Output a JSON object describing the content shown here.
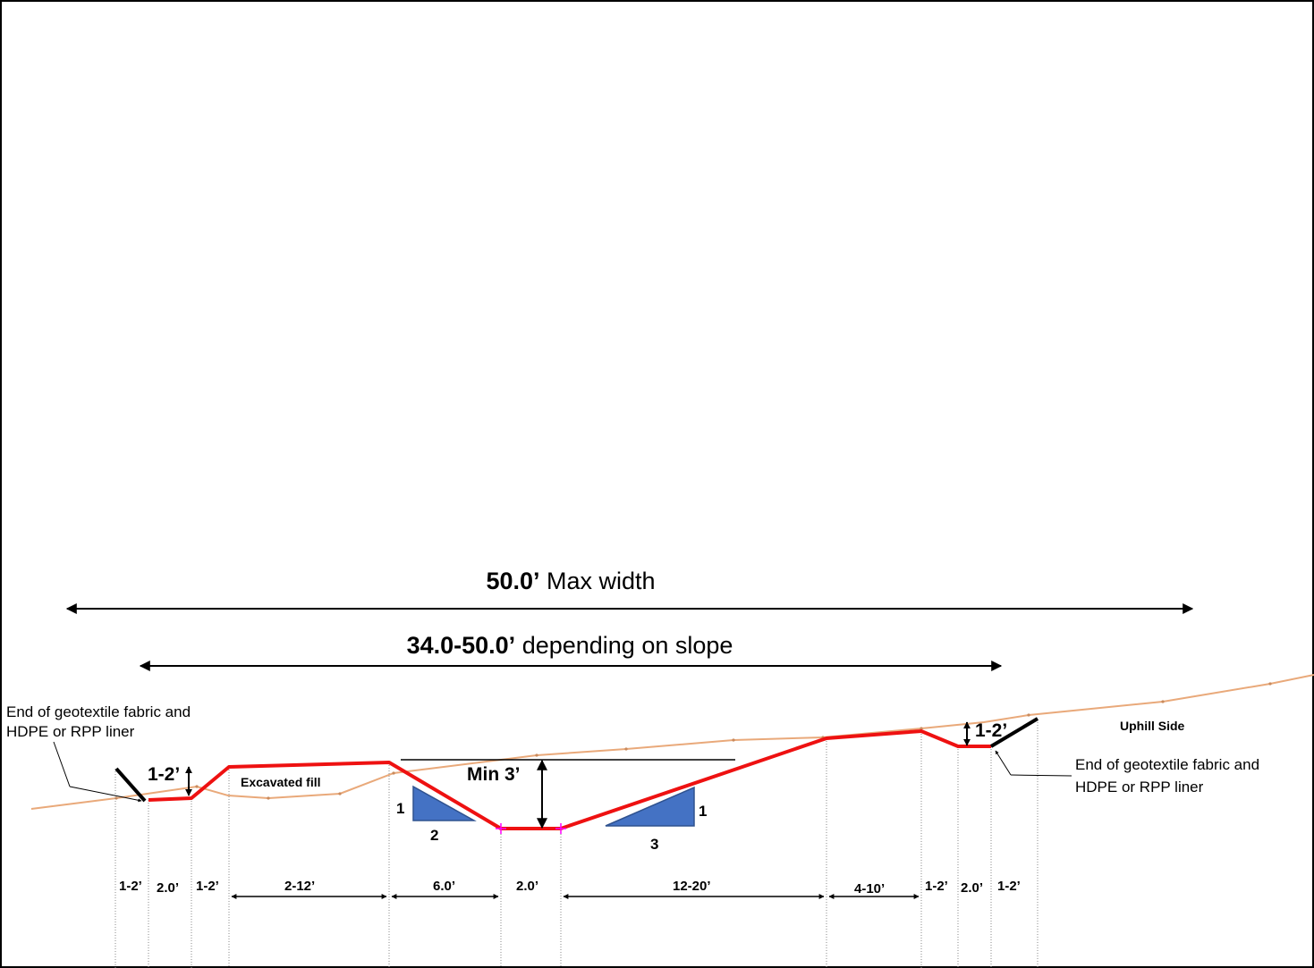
{
  "diagram": {
    "max_width": {
      "value": "50.0’",
      "label": "Max width"
    },
    "range_width": {
      "value": "34.0-50.0’",
      "label": "depending on slope"
    },
    "liner_note_left": [
      "End of geotextile fabric and",
      "HDPE or RPP liner"
    ],
    "liner_note_right": [
      "End of geotextile fabric and",
      "HDPE or RPP liner"
    ],
    "uphill_label": "Uphill Side",
    "fill_label": "Excavated fill",
    "depth_label": "Min 3’",
    "berm_height_left": "1-2’",
    "berm_height_right": "1-2’",
    "slope_left": {
      "rise": "1",
      "run": "2"
    },
    "slope_right": {
      "rise": "1",
      "run": "3"
    },
    "dimensions": [
      "1-2’",
      "2.0’",
      "1-2’",
      "2-12’",
      "6.0’",
      "2.0’",
      "12-20’",
      "4-10’",
      "1-2’",
      "2.0’",
      "1-2’"
    ],
    "colors": {
      "profile": "#ee1111",
      "ground": "#e9a97a",
      "triangle_fill": "#4472c4",
      "triangle_stroke": "#2f528f",
      "marker": "#ff00ff"
    }
  }
}
